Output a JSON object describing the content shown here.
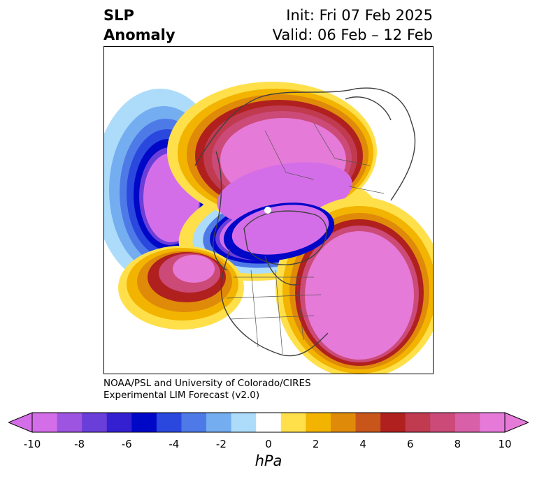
{
  "title": {
    "left_line1": "SLP",
    "left_line2": "Anomaly",
    "right_line1": "Init: Fri 07 Feb 2025",
    "right_line2": "Valid: 06 Feb – 12 Feb"
  },
  "credit": {
    "line1": "NOAA/PSL and University of Colorado/CIRES",
    "line2": "Experimental LIM Forecast (v2.0)"
  },
  "colorbar": {
    "unit": "hPa",
    "tick_labels": [
      "-10",
      "-8",
      "-6",
      "-4",
      "-2",
      "0",
      "2",
      "4",
      "6",
      "8",
      "10"
    ],
    "colors": [
      "#d46ee8",
      "#9d54e0",
      "#6a3ed9",
      "#3420d0",
      "#0008c8",
      "#2a48de",
      "#4e7ae8",
      "#74aef0",
      "#acdcfa",
      "#ffffff",
      "#ffe04a",
      "#f2b400",
      "#e08a0a",
      "#c8561a",
      "#b0201e",
      "#c03a50",
      "#cc4a78",
      "#d860a8",
      "#e57ad8"
    ],
    "range": [
      -10,
      10
    ]
  },
  "map": {
    "projection": "north-polar-stereographic",
    "features": [
      "coastlines",
      "country-borders",
      "state-borders"
    ],
    "anomaly_centers": [
      {
        "region": "north-pacific",
        "sign": "negative"
      },
      {
        "region": "arctic-canada-greenland",
        "sign": "negative"
      },
      {
        "region": "siberia-arctic",
        "sign": "positive"
      },
      {
        "region": "north-atlantic",
        "sign": "positive"
      },
      {
        "region": "central-pacific",
        "sign": "positive"
      }
    ]
  }
}
